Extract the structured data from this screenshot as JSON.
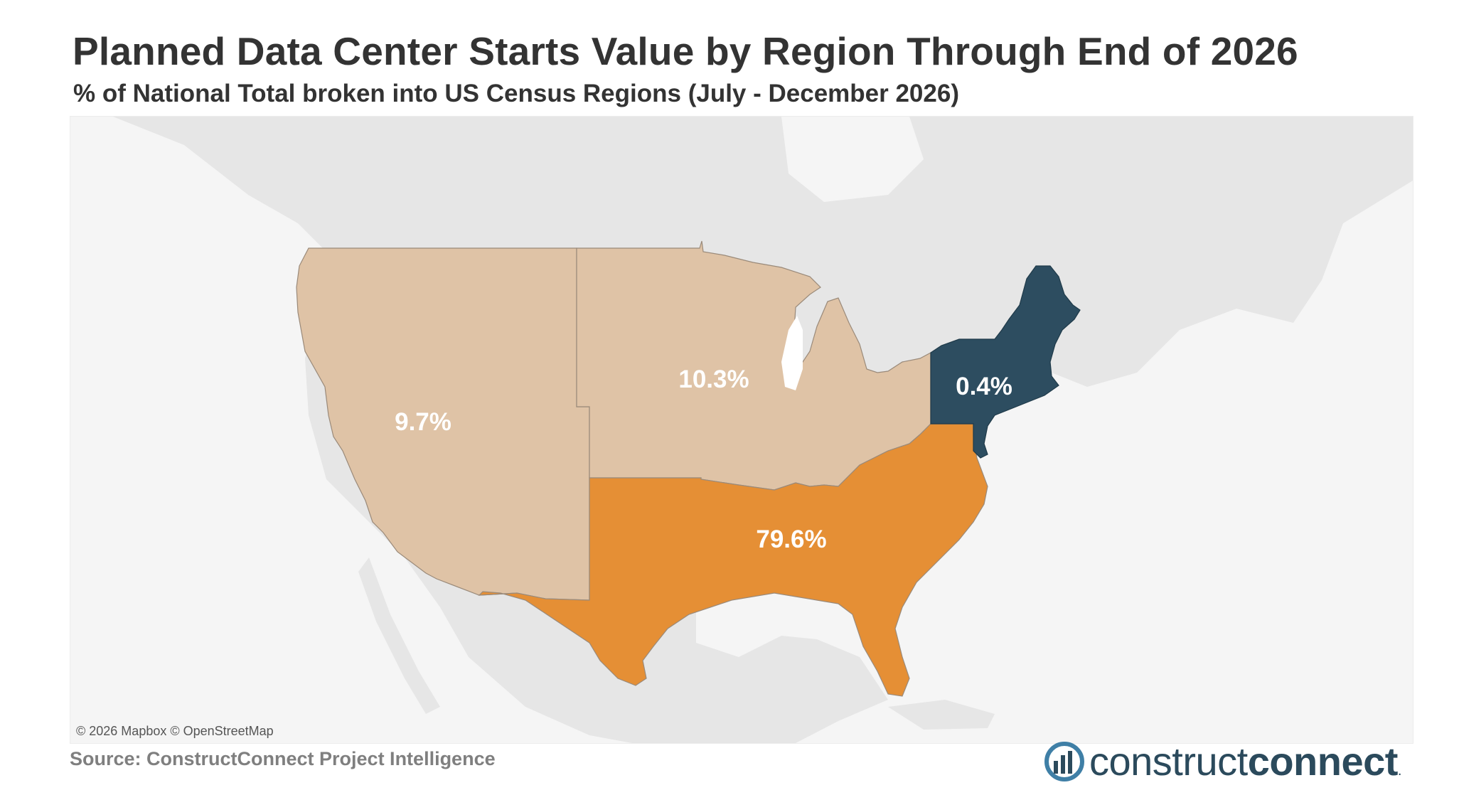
{
  "title": "Planned Data Center Starts Value by Region Through End of 2026",
  "subtitle": "% of National Total broken into US Census Regions (July - December 2026)",
  "map": {
    "regions": [
      {
        "name": "West",
        "value": 9.7,
        "label": "9.7%",
        "color": "#dfc3a6"
      },
      {
        "name": "Midwest",
        "value": 10.3,
        "label": "10.3%",
        "color": "#dfc3a6"
      },
      {
        "name": "South",
        "value": 79.6,
        "label": "79.6%",
        "color": "#e58f35"
      },
      {
        "name": "Northeast",
        "value": 0.4,
        "label": "0.4%",
        "color": "#2d4d60"
      }
    ],
    "attribution": "© 2026 Mapbox © OpenStreetMap"
  },
  "source": "Source: ConstructConnect Project Intelligence",
  "logo": {
    "regular": "construct",
    "bold": "connect",
    "mark": "."
  }
}
